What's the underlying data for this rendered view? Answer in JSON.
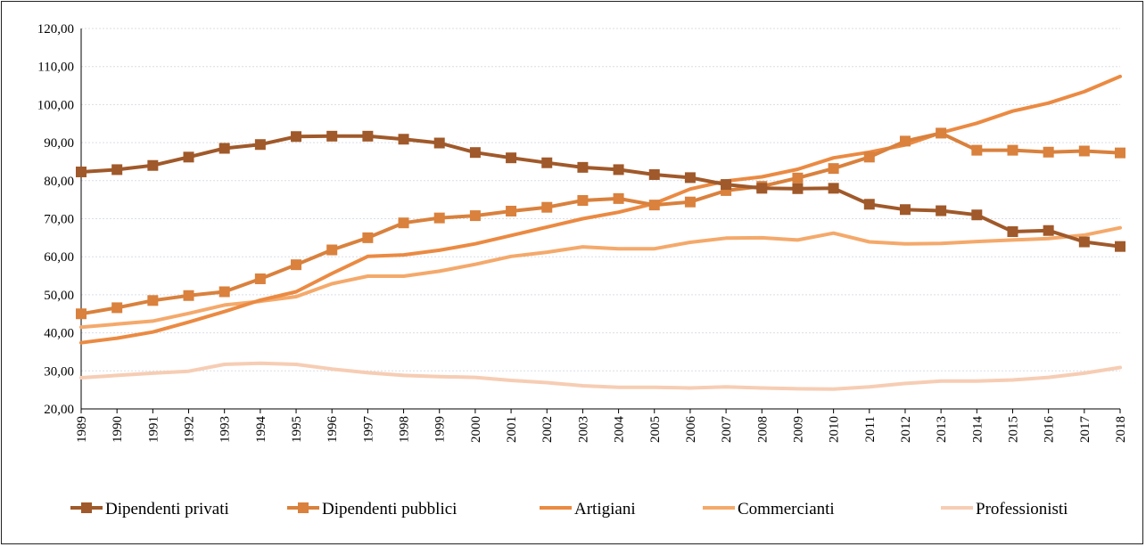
{
  "chart_data": {
    "type": "line",
    "title": "",
    "xlabel": "",
    "ylabel": "",
    "ylim": [
      20,
      120
    ],
    "yticks": [
      "20,00",
      "30,00",
      "40,00",
      "50,00",
      "60,00",
      "70,00",
      "80,00",
      "90,00",
      "100,00",
      "110,00",
      "120,00"
    ],
    "x": [
      "1989",
      "1990",
      "1991",
      "1992",
      "1993",
      "1994",
      "1995",
      "1996",
      "1997",
      "1998",
      "1999",
      "2000",
      "2001",
      "2002",
      "2003",
      "2004",
      "2005",
      "2006",
      "2007",
      "2008",
      "2009",
      "2010",
      "2011",
      "2012",
      "2013",
      "2014",
      "2015",
      "2016",
      "2017",
      "2018"
    ],
    "grid": "horizontal",
    "legend_position": "bottom",
    "series": [
      {
        "name": "Dipendenti privati",
        "color": "#a0592a",
        "marker": "square",
        "values": [
          82.3,
          82.9,
          84.0,
          86.2,
          88.5,
          89.5,
          91.6,
          91.7,
          91.7,
          90.9,
          89.9,
          87.4,
          86.0,
          84.7,
          83.5,
          82.9,
          81.6,
          80.8,
          79.0,
          78.0,
          77.9,
          78.0,
          73.8,
          72.4,
          72.1,
          71.0,
          66.6,
          66.9,
          63.9,
          62.7
        ]
      },
      {
        "name": "Dipendenti pubblici",
        "color": "#d9813d",
        "marker": "square",
        "values": [
          45.0,
          46.6,
          48.5,
          49.8,
          50.8,
          54.2,
          57.9,
          61.8,
          65.0,
          68.9,
          70.2,
          70.8,
          72.0,
          73.0,
          74.8,
          75.3,
          73.6,
          74.4,
          77.4,
          78.5,
          80.7,
          83.2,
          86.2,
          90.4,
          92.5,
          88.0,
          88.0,
          87.5,
          87.8,
          87.3
        ]
      },
      {
        "name": "Artigiani",
        "color": "#eb8a42",
        "marker": "none",
        "values": [
          37.4,
          38.6,
          40.2,
          42.8,
          45.6,
          48.6,
          50.8,
          55.6,
          60.1,
          60.5,
          61.7,
          63.4,
          65.6,
          67.8,
          70.0,
          71.7,
          74.0,
          77.8,
          79.9,
          81.0,
          83.0,
          86.0,
          87.5,
          89.4,
          92.6,
          95.1,
          98.3,
          100.4,
          103.4,
          107.4
        ]
      },
      {
        "name": "Commercianti",
        "color": "#f4a96b",
        "marker": "none",
        "values": [
          41.5,
          42.3,
          43.1,
          45.1,
          47.3,
          48.3,
          49.5,
          52.9,
          54.9,
          54.9,
          56.2,
          58.0,
          60.1,
          61.2,
          62.6,
          62.1,
          62.1,
          63.8,
          64.9,
          65.0,
          64.4,
          66.2,
          63.9,
          63.4,
          63.5,
          64.0,
          64.4,
          64.8,
          65.7,
          67.6
        ]
      },
      {
        "name": "Professionisti",
        "color": "#f6cdb4",
        "marker": "none",
        "values": [
          28.2,
          28.8,
          29.4,
          29.9,
          31.7,
          32.0,
          31.7,
          30.5,
          29.5,
          28.8,
          28.5,
          28.3,
          27.5,
          26.9,
          26.1,
          25.7,
          25.7,
          25.5,
          25.8,
          25.5,
          25.3,
          25.2,
          25.8,
          26.7,
          27.3,
          27.3,
          27.6,
          28.3,
          29.4,
          30.9
        ]
      }
    ]
  }
}
